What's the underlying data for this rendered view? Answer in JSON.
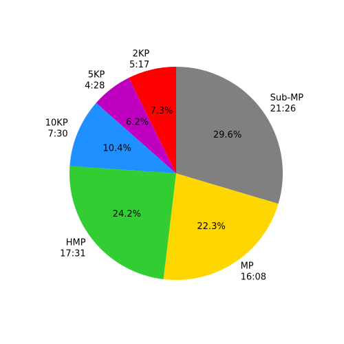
{
  "chart_data": {
    "type": "pie",
    "title": "",
    "start_angle_deg": 90,
    "direction": "clockwise",
    "slices": [
      {
        "label": "Sub-MP",
        "time": "21:26",
        "value": 29.6,
        "pct_label": "29.6%",
        "color": "#808080"
      },
      {
        "label": "MP",
        "time": "16:08",
        "value": 22.3,
        "pct_label": "22.3%",
        "color": "#FFD700"
      },
      {
        "label": "HMP",
        "time": "17:31",
        "value": 24.2,
        "pct_label": "24.2%",
        "color": "#32CD32"
      },
      {
        "label": "10KP",
        "time": "7:30",
        "value": 10.4,
        "pct_label": "10.4%",
        "color": "#1E90FF"
      },
      {
        "label": "5KP",
        "time": "4:28",
        "value": 6.2,
        "pct_label": "6.2%",
        "color": "#C000C0"
      },
      {
        "label": "2KP",
        "time": "5:17",
        "value": 7.3,
        "pct_label": "7.3%",
        "color": "#FF0000"
      }
    ]
  }
}
